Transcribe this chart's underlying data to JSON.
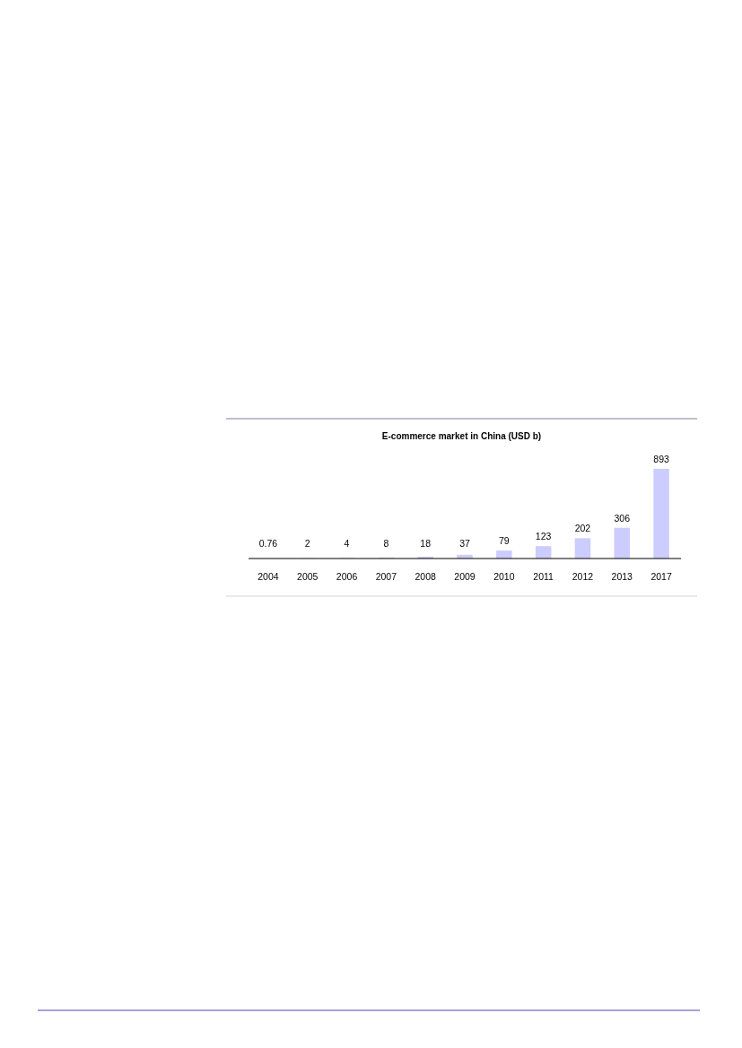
{
  "chart_data": {
    "type": "bar",
    "title": "E-commerce market in China (USD b)",
    "categories": [
      "2004",
      "2005",
      "2006",
      "2007",
      "2008",
      "2009",
      "2010",
      "2011",
      "2012",
      "2013",
      "2017"
    ],
    "values": [
      0.76,
      2,
      4,
      8,
      18,
      37,
      79,
      123,
      202,
      306,
      893
    ],
    "color": "#ccccff",
    "data_labels": true
  }
}
